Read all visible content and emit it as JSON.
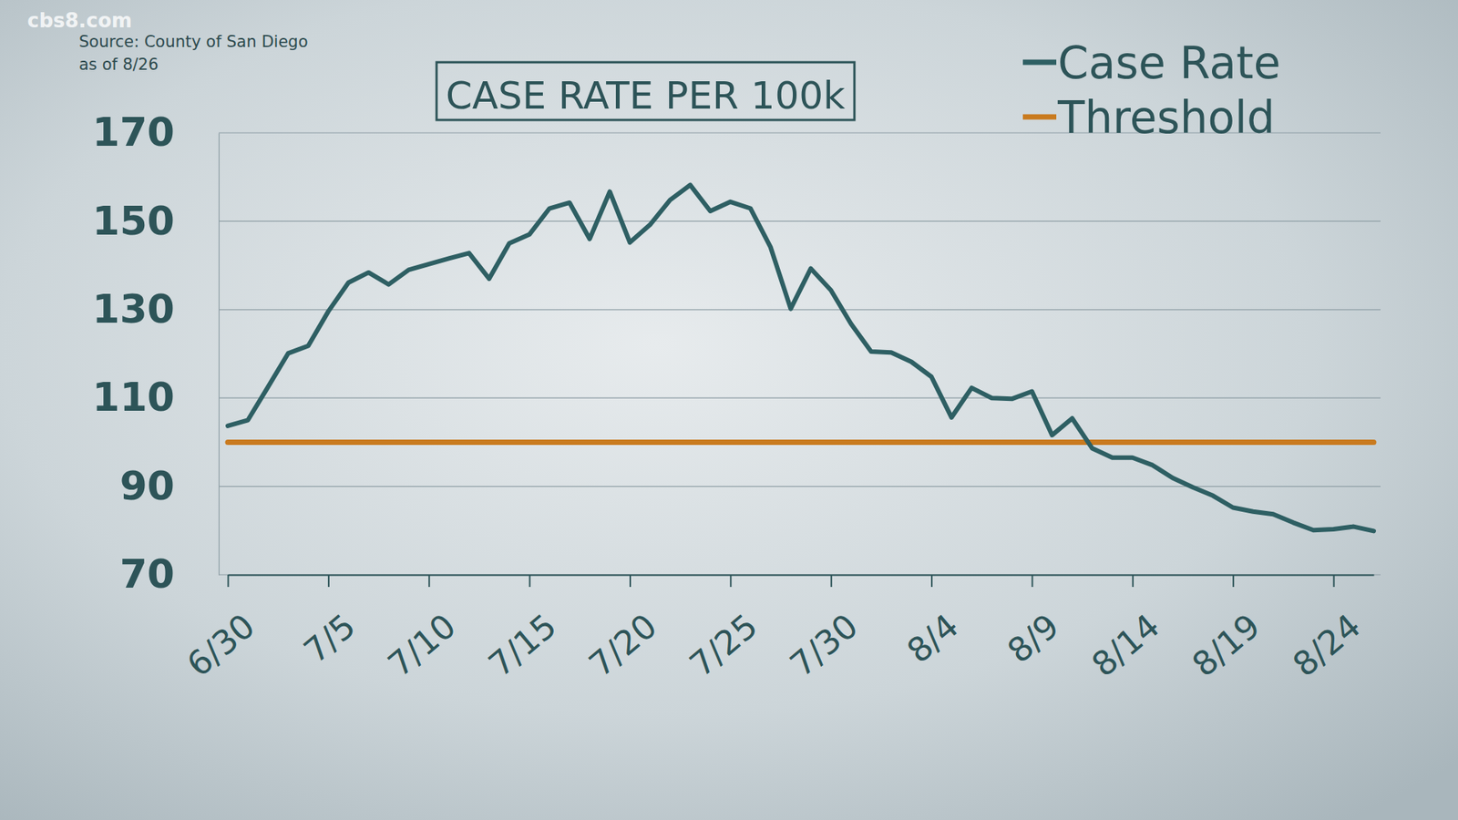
{
  "chart_data": {
    "type": "line",
    "title": "CASE RATE PER 100k",
    "source": [
      "Source: County of San Diego",
      "as of 8/26"
    ],
    "watermark": "cbs8.com",
    "categories": [
      "6/30",
      null,
      null,
      null,
      null,
      "7/5",
      null,
      null,
      null,
      null,
      "7/10",
      null,
      null,
      null,
      null,
      "7/15",
      null,
      null,
      null,
      null,
      "7/20",
      null,
      null,
      null,
      null,
      "7/25",
      null,
      null,
      null,
      null,
      "7/30",
      null,
      null,
      null,
      null,
      "8/4",
      null,
      null,
      null,
      null,
      "8/9",
      null,
      null,
      null,
      null,
      "8/14",
      null,
      null,
      null,
      null,
      "8/19",
      null,
      null,
      null,
      null,
      "8/24",
      null,
      null
    ],
    "series": [
      {
        "name": "Case Rate",
        "color": "#2e5f63",
        "values": [
          103.7,
          105,
          112.5,
          120.1,
          121.8,
          129.6,
          136.1,
          138.4,
          135.7,
          139,
          140.3,
          141.6,
          142.8,
          137,
          145,
          147,
          152.9,
          154.2,
          146,
          156.7,
          145.2,
          149.2,
          154.8,
          158.2,
          152.3,
          154.4,
          152.9,
          144.1,
          130.2,
          139.3,
          134.4,
          126.8,
          120.5,
          120.3,
          118.2,
          114.8,
          105.6,
          112.3,
          110,
          109.8,
          111.5,
          101.6,
          105.4,
          98.6,
          96.5,
          96.5,
          94.8,
          91.9,
          89.8,
          87.9,
          85.2,
          84.3,
          83.7,
          81.8,
          80.1,
          80.3,
          80.9,
          79.9
        ]
      },
      {
        "name": "Threshold",
        "color": "#c97a1e",
        "values": [
          100,
          100,
          100,
          100,
          100,
          100,
          100,
          100,
          100,
          100,
          100,
          100,
          100,
          100,
          100,
          100,
          100,
          100,
          100,
          100,
          100,
          100,
          100,
          100,
          100,
          100,
          100,
          100,
          100,
          100,
          100,
          100,
          100,
          100,
          100,
          100,
          100,
          100,
          100,
          100,
          100,
          100,
          100,
          100,
          100,
          100,
          100,
          100,
          100,
          100,
          100,
          100,
          100,
          100,
          100,
          100,
          100,
          100
        ]
      }
    ],
    "ylim": [
      70,
      170
    ],
    "yticks": [
      70,
      90,
      110,
      130,
      150,
      170
    ],
    "grid": true,
    "legend": "top-right"
  }
}
